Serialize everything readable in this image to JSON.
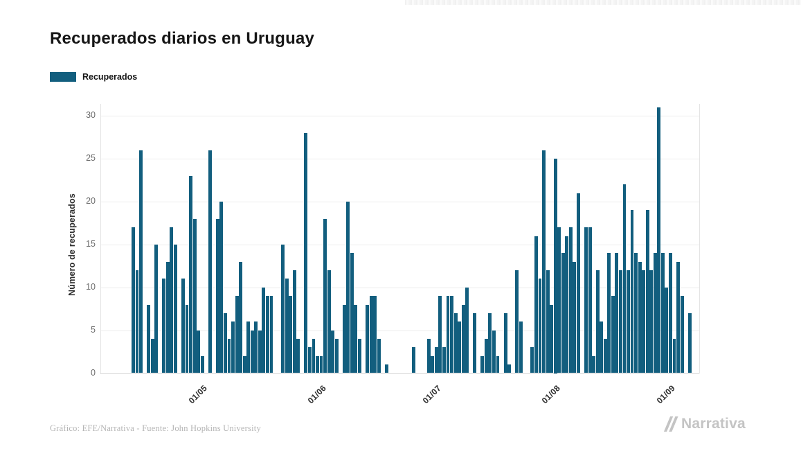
{
  "header": {
    "title": "Recuperados diarios en Uruguay"
  },
  "legend": {
    "label": "Recuperados",
    "swatch_color": "#125e7e"
  },
  "y_axis": {
    "title": "Número de recuperados"
  },
  "footer": {
    "source": "Gráfico: EFE/Narrativa - Fuente: John Hopkins University",
    "brand": "Narrativa"
  },
  "chart_data": {
    "type": "bar",
    "title": "Recuperados diarios en Uruguay",
    "xlabel": "",
    "ylabel": "Número de recuperados",
    "ylim": [
      0,
      30
    ],
    "y_ticks": [
      0,
      5,
      10,
      15,
      20,
      25,
      30
    ],
    "grid": true,
    "legend_position": "top-left",
    "bar_color": "#125e7e",
    "grid_color": "#ededed",
    "x_ticks": [
      {
        "label": "01/05",
        "slot": 15
      },
      {
        "label": "01/06",
        "slot": 46
      },
      {
        "label": "01/07",
        "slot": 76
      },
      {
        "label": "01/08",
        "slot": 107
      },
      {
        "label": "01/09",
        "slot": 137
      }
    ],
    "series": [
      {
        "name": "Recuperados",
        "values": [
          17,
          12,
          26,
          0,
          8,
          4,
          15,
          0,
          11,
          13,
          17,
          15,
          0,
          11,
          8,
          23,
          18,
          5,
          2,
          0,
          26,
          0,
          18,
          20,
          7,
          4,
          6,
          9,
          13,
          2,
          6,
          5,
          6,
          5,
          10,
          9,
          9,
          0,
          0,
          15,
          11,
          9,
          12,
          4,
          0,
          28,
          3,
          4,
          2,
          2,
          18,
          12,
          5,
          4,
          0,
          8,
          20,
          14,
          8,
          4,
          0,
          8,
          9,
          9,
          4,
          0,
          1,
          0,
          0,
          0,
          0,
          0,
          0,
          3,
          0,
          0,
          0,
          4,
          2,
          3,
          9,
          3,
          9,
          9,
          7,
          6,
          8,
          10,
          0,
          7,
          0,
          2,
          4,
          7,
          5,
          2,
          0,
          7,
          1,
          0,
          12,
          6,
          0,
          0,
          3,
          16,
          11,
          26,
          12,
          8,
          25,
          17,
          14,
          16,
          17,
          13,
          21,
          0,
          17,
          17,
          2,
          12,
          6,
          4,
          14,
          9,
          14,
          12,
          22,
          12,
          19,
          14,
          13,
          12,
          19,
          12,
          14,
          31,
          14,
          10,
          14,
          4,
          13,
          9,
          0,
          7
        ]
      }
    ]
  }
}
